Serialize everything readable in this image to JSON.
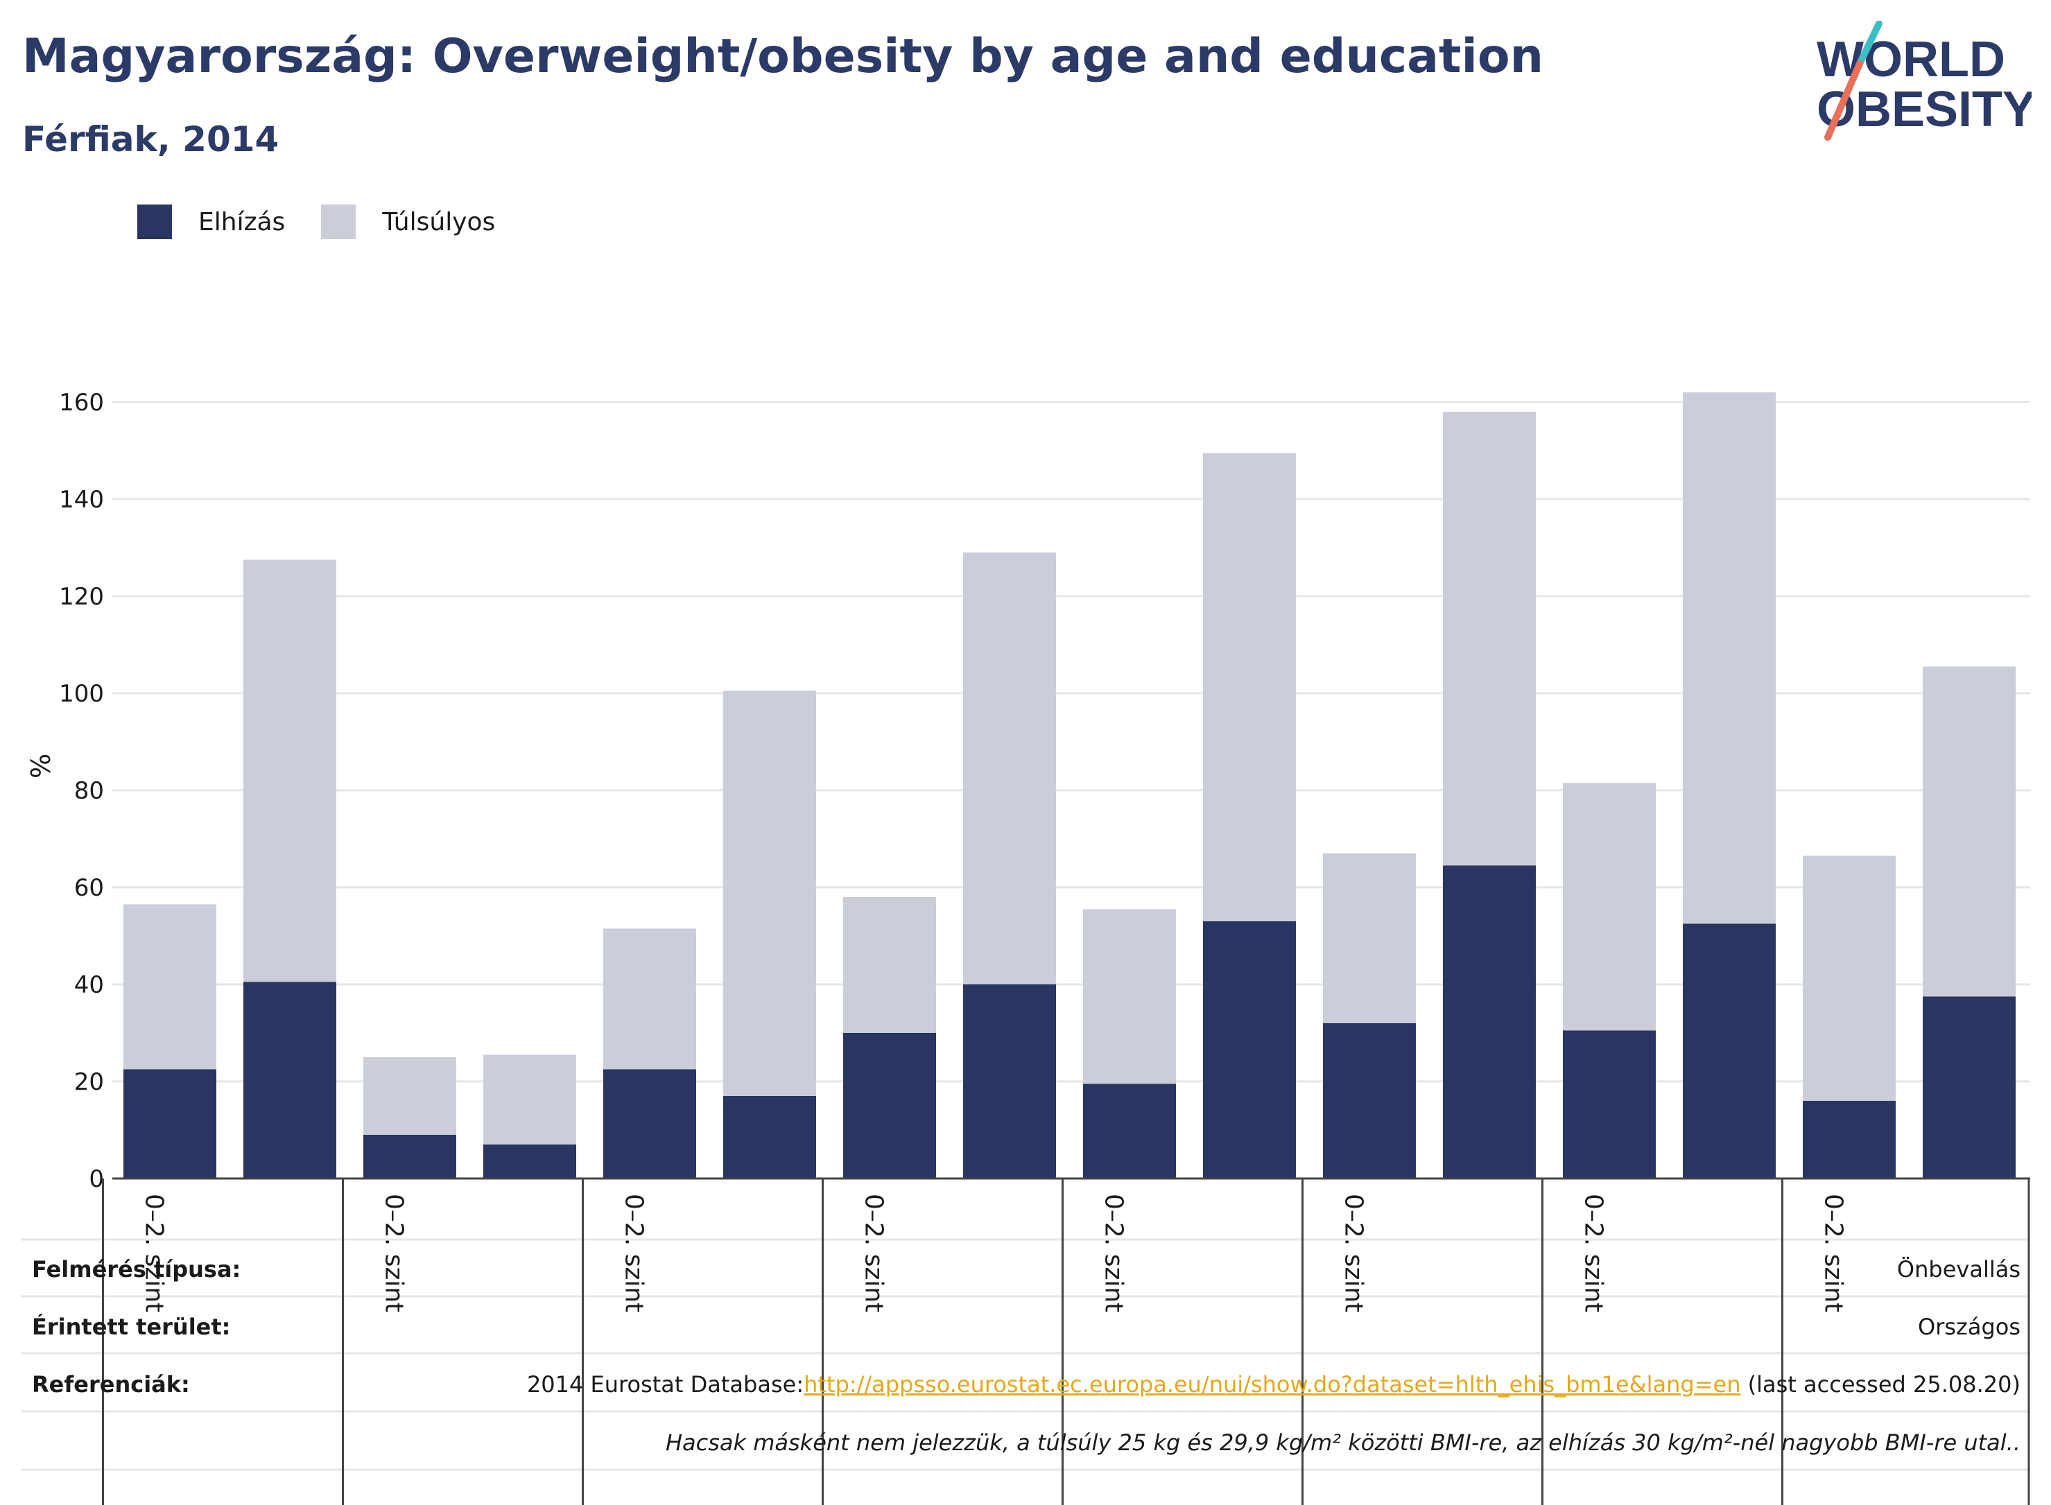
{
  "header": {
    "title": "Magyarország: Overweight/obesity by age and education",
    "subtitle": "Férfiak, 2014"
  },
  "logo": {
    "line1": "WORLD",
    "line2": "OBESITY",
    "text_color": "#2b3a67",
    "slash_colors": [
      "#e8705a",
      "#3bbfc4"
    ]
  },
  "legend": {
    "items": [
      {
        "label": "Elhízás",
        "color": "#2a3561"
      },
      {
        "label": "Túlsúlyos",
        "color": "#cbcdd9"
      }
    ]
  },
  "chart_data": {
    "type": "bar",
    "stacked": true,
    "ylabel": "%",
    "ylim": [
      0,
      170
    ],
    "yticks": [
      0,
      20,
      40,
      60,
      80,
      100,
      120,
      140,
      160
    ],
    "grid": true,
    "legend_position": "top-left",
    "group_tick_label": "0–2. szint",
    "group_count": 8,
    "bars_per_group": 2,
    "series": [
      {
        "name": "Elhízás",
        "color": "#2a3561",
        "values": [
          22.5,
          40.5,
          9,
          7,
          22.5,
          17,
          30,
          40,
          19.5,
          53,
          32,
          64.5,
          30.5,
          52.5,
          16,
          37.5
        ]
      },
      {
        "name": "Túlsúlyos",
        "color": "#cbcdd9",
        "values": [
          34,
          87,
          16,
          18.5,
          29,
          83.5,
          28,
          89,
          36,
          96.5,
          35,
          93.5,
          51,
          109.5,
          50.5,
          68
        ]
      }
    ]
  },
  "footer": {
    "survey_type": {
      "label": "Felmérés típusa:",
      "value": "Önbevallás"
    },
    "area": {
      "label": "Érintett terület:",
      "value": "Országos"
    },
    "references": {
      "label": "Referenciák:",
      "prefix": "2014 Eurostat Database:",
      "link": "http://appsso.eurostat.ec.europa.eu/nui/show.do?dataset=hlth_ehis_bm1e&lang=en",
      "suffix": " (last accessed 25.08.20)"
    },
    "note": "Hacsak másként nem jelezzük, a túlsúly 25 kg és 29,9 kg/m² közötti BMI-re, az elhízás 30 kg/m²-nél nagyobb BMI-re utal.."
  }
}
